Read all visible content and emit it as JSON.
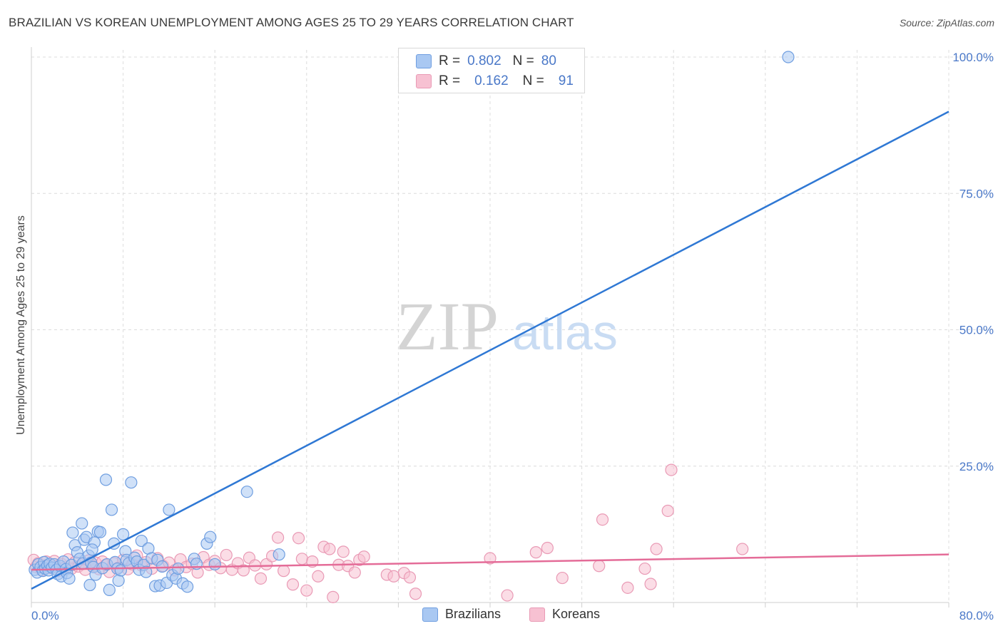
{
  "title": "BRAZILIAN VS KOREAN UNEMPLOYMENT AMONG AGES 25 TO 29 YEARS CORRELATION CHART",
  "source": "Source: ZipAtlas.com",
  "watermark": {
    "zip": "ZIP",
    "atlas": "atlas"
  },
  "legend_top": [
    {
      "r_label": "R =",
      "r_value": "0.802",
      "n_label": "N =",
      "n_value": "80"
    },
    {
      "r_label": "R =",
      "r_value": "0.162",
      "n_label": "N =",
      "n_value": "91"
    }
  ],
  "legend_bottom": [
    "Brazilians",
    "Koreans"
  ],
  "colors": {
    "blue_fill": "#a9c8f2",
    "blue_stroke": "#6f9ee0",
    "blue_line": "#2f78d4",
    "pink_fill": "#f7c1d2",
    "pink_stroke": "#e99ab5",
    "pink_line": "#e46c98",
    "tick_text": "#4a78c8",
    "grid": "#dcdcdc"
  },
  "chart_data": {
    "type": "scatter",
    "title": "BRAZILIAN VS KOREAN UNEMPLOYMENT AMONG AGES 25 TO 29 YEARS CORRELATION CHART",
    "xlabel": "",
    "ylabel": "Unemployment Among Ages 25 to 29 years",
    "xlim": [
      0,
      80
    ],
    "ylim": [
      0,
      100
    ],
    "x_ticks": [
      "0.0%",
      "80.0%"
    ],
    "y_ticks": [
      "25.0%",
      "50.0%",
      "75.0%",
      "100.0%"
    ],
    "y_tick_values": [
      25,
      50,
      75,
      100
    ],
    "grid": true,
    "series": [
      {
        "name": "Brazilians",
        "r": 0.802,
        "n": 80,
        "trend": {
          "x": [
            0,
            80
          ],
          "y": [
            2.5,
            90
          ]
        },
        "points": [
          [
            0.3,
            6.0
          ],
          [
            0.5,
            5.5
          ],
          [
            0.6,
            7.0
          ],
          [
            0.8,
            6.5
          ],
          [
            1.0,
            5.8
          ],
          [
            1.1,
            7.4
          ],
          [
            1.2,
            6.2
          ],
          [
            1.4,
            6.8
          ],
          [
            1.5,
            5.9
          ],
          [
            1.6,
            7.1
          ],
          [
            1.8,
            6.4
          ],
          [
            2.0,
            7.0
          ],
          [
            2.2,
            6.0
          ],
          [
            2.3,
            5.2
          ],
          [
            2.5,
            6.7
          ],
          [
            2.6,
            4.8
          ],
          [
            2.8,
            7.5
          ],
          [
            3.0,
            6.1
          ],
          [
            3.1,
            5.4
          ],
          [
            3.3,
            4.4
          ],
          [
            3.5,
            6.9
          ],
          [
            3.6,
            12.8
          ],
          [
            3.8,
            10.5
          ],
          [
            4.0,
            9.2
          ],
          [
            4.2,
            8.0
          ],
          [
            4.4,
            14.5
          ],
          [
            4.5,
            7.2
          ],
          [
            4.6,
            11.5
          ],
          [
            4.8,
            12.0
          ],
          [
            5.0,
            8.6
          ],
          [
            5.1,
            3.2
          ],
          [
            5.2,
            7.3
          ],
          [
            5.4,
            6.5
          ],
          [
            5.5,
            11.0
          ],
          [
            5.6,
            5.1
          ],
          [
            5.8,
            13.0
          ],
          [
            6.0,
            12.9
          ],
          [
            6.2,
            6.3
          ],
          [
            6.5,
            22.5
          ],
          [
            6.6,
            7.0
          ],
          [
            6.8,
            2.3
          ],
          [
            7.0,
            17.0
          ],
          [
            7.2,
            10.8
          ],
          [
            7.3,
            7.4
          ],
          [
            7.5,
            6.2
          ],
          [
            7.6,
            4.0
          ],
          [
            7.8,
            5.9
          ],
          [
            8.0,
            12.5
          ],
          [
            8.2,
            9.4
          ],
          [
            8.3,
            7.8
          ],
          [
            8.5,
            7.2
          ],
          [
            8.7,
            22.0
          ],
          [
            9.0,
            8.2
          ],
          [
            9.2,
            7.5
          ],
          [
            9.4,
            6.0
          ],
          [
            9.6,
            11.3
          ],
          [
            9.8,
            6.9
          ],
          [
            10.0,
            5.6
          ],
          [
            10.2,
            9.9
          ],
          [
            10.5,
            8.1
          ],
          [
            10.8,
            3.0
          ],
          [
            11.0,
            7.8
          ],
          [
            11.2,
            3.1
          ],
          [
            11.4,
            6.6
          ],
          [
            11.8,
            3.6
          ],
          [
            12.0,
            17.0
          ],
          [
            12.3,
            5.0
          ],
          [
            12.6,
            4.4
          ],
          [
            12.8,
            6.2
          ],
          [
            13.2,
            3.5
          ],
          [
            13.6,
            2.9
          ],
          [
            14.2,
            8.0
          ],
          [
            14.4,
            7.1
          ],
          [
            15.3,
            10.8
          ],
          [
            15.6,
            12.0
          ],
          [
            16.0,
            7.0
          ],
          [
            18.8,
            20.3
          ],
          [
            21.6,
            8.8
          ],
          [
            66.0,
            100.0
          ],
          [
            5.3,
            9.7
          ]
        ]
      },
      {
        "name": "Koreans",
        "r": 0.162,
        "n": 91,
        "trend": {
          "x": [
            0,
            80
          ],
          "y": [
            6.0,
            8.8
          ]
        },
        "points": [
          [
            0.2,
            7.8
          ],
          [
            0.4,
            6.5
          ],
          [
            0.6,
            7.2
          ],
          [
            0.9,
            5.9
          ],
          [
            1.1,
            6.8
          ],
          [
            1.3,
            7.5
          ],
          [
            1.5,
            6.3
          ],
          [
            1.8,
            6.9
          ],
          [
            2.0,
            7.6
          ],
          [
            2.3,
            5.8
          ],
          [
            2.6,
            7.1
          ],
          [
            2.9,
            6.4
          ],
          [
            3.2,
            7.9
          ],
          [
            3.5,
            6.2
          ],
          [
            3.8,
            7.4
          ],
          [
            4.1,
            6.6
          ],
          [
            4.4,
            7.0
          ],
          [
            4.7,
            6.0
          ],
          [
            5.0,
            7.7
          ],
          [
            5.3,
            6.7
          ],
          [
            5.6,
            7.3
          ],
          [
            5.9,
            6.1
          ],
          [
            6.2,
            7.5
          ],
          [
            6.5,
            6.9
          ],
          [
            6.8,
            5.6
          ],
          [
            7.2,
            7.2
          ],
          [
            7.6,
            6.4
          ],
          [
            8.0,
            7.8
          ],
          [
            8.4,
            6.1
          ],
          [
            8.8,
            7.0
          ],
          [
            9.2,
            8.6
          ],
          [
            9.6,
            6.8
          ],
          [
            10.0,
            7.4
          ],
          [
            10.5,
            6.2
          ],
          [
            11.0,
            8.1
          ],
          [
            11.5,
            6.7
          ],
          [
            12.0,
            7.3
          ],
          [
            12.5,
            5.9
          ],
          [
            13.0,
            7.9
          ],
          [
            13.5,
            6.5
          ],
          [
            14.0,
            7.1
          ],
          [
            14.5,
            5.5
          ],
          [
            15.0,
            8.3
          ],
          [
            15.5,
            6.9
          ],
          [
            16.0,
            7.6
          ],
          [
            16.5,
            6.3
          ],
          [
            17.0,
            8.7
          ],
          [
            17.5,
            6.0
          ],
          [
            18.0,
            7.2
          ],
          [
            18.5,
            5.9
          ],
          [
            19.0,
            8.2
          ],
          [
            19.5,
            6.8
          ],
          [
            20.0,
            4.4
          ],
          [
            20.5,
            7.0
          ],
          [
            21.0,
            8.5
          ],
          [
            21.5,
            11.9
          ],
          [
            22.0,
            5.8
          ],
          [
            22.8,
            3.3
          ],
          [
            23.3,
            11.8
          ],
          [
            23.6,
            8.0
          ],
          [
            24.0,
            2.2
          ],
          [
            24.5,
            7.5
          ],
          [
            25.0,
            4.8
          ],
          [
            25.5,
            10.2
          ],
          [
            26.0,
            9.8
          ],
          [
            26.3,
            1.0
          ],
          [
            26.8,
            6.9
          ],
          [
            27.2,
            9.3
          ],
          [
            27.6,
            6.7
          ],
          [
            28.2,
            5.5
          ],
          [
            28.6,
            7.8
          ],
          [
            29.0,
            8.4
          ],
          [
            31.0,
            5.1
          ],
          [
            31.6,
            4.8
          ],
          [
            32.5,
            5.4
          ],
          [
            33.0,
            4.6
          ],
          [
            33.5,
            1.6
          ],
          [
            40.0,
            8.1
          ],
          [
            41.5,
            1.3
          ],
          [
            44.0,
            9.2
          ],
          [
            45.0,
            10.0
          ],
          [
            46.3,
            4.5
          ],
          [
            49.5,
            6.7
          ],
          [
            49.8,
            15.2
          ],
          [
            52.0,
            2.7
          ],
          [
            53.5,
            6.2
          ],
          [
            54.0,
            3.4
          ],
          [
            54.5,
            9.8
          ],
          [
            55.5,
            16.8
          ],
          [
            55.8,
            24.3
          ],
          [
            62.0,
            9.8
          ]
        ]
      }
    ]
  }
}
